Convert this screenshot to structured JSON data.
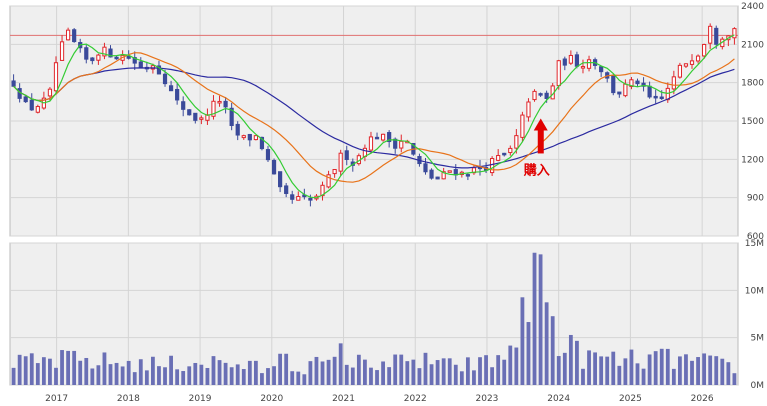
{
  "chart_data": {
    "type": "candlestick-volume",
    "x_ticks": [
      "2017",
      "2018",
      "2019",
      "2020",
      "2021",
      "2022",
      "2023",
      "2024",
      "2025",
      "2026"
    ],
    "price_axis": {
      "ticks": [
        "2400",
        "2100",
        "1800",
        "1500",
        "1200",
        "900",
        "600"
      ],
      "range": [
        600,
        2400
      ]
    },
    "volume_axis": {
      "ticks": [
        "15M",
        "10M",
        "5M",
        "0M"
      ],
      "range": [
        0,
        15
      ]
    },
    "reference_line": 2170,
    "annotation": {
      "text": "購入",
      "x": 2023.75,
      "y": 1520
    },
    "colors": {
      "up": "#e0262b",
      "down": "#3b4a9a",
      "ma_short": "#33cc33",
      "ma_mid": "#e8731a",
      "ma_long": "#2b2aa0",
      "reference": "#e07070",
      "volume": "#6a6fb5",
      "arrow": "#e00000"
    },
    "price_waypoints": [
      [
        2016.4,
        1800
      ],
      [
        2016.6,
        1590
      ],
      [
        2016.8,
        1640
      ],
      [
        2016.9,
        1700
      ],
      [
        2017.0,
        1980
      ],
      [
        2017.15,
        2190
      ],
      [
        2017.3,
        2060
      ],
      [
        2017.45,
        1950
      ],
      [
        2017.6,
        2060
      ],
      [
        2017.8,
        2020
      ],
      [
        2018.0,
        2000
      ],
      [
        2018.2,
        1910
      ],
      [
        2018.35,
        1950
      ],
      [
        2018.5,
        1840
      ],
      [
        2018.65,
        1660
      ],
      [
        2018.85,
        1560
      ],
      [
        2019.0,
        1490
      ],
      [
        2019.15,
        1610
      ],
      [
        2019.3,
        1680
      ],
      [
        2019.45,
        1420
      ],
      [
        2019.6,
        1360
      ],
      [
        2019.8,
        1380
      ],
      [
        2019.9,
        1250
      ],
      [
        2020.1,
        960
      ],
      [
        2020.25,
        880
      ],
      [
        2020.4,
        890
      ],
      [
        2020.55,
        870
      ],
      [
        2020.7,
        960
      ],
      [
        2020.85,
        1110
      ],
      [
        2021.0,
        1260
      ],
      [
        2021.15,
        1160
      ],
      [
        2021.3,
        1320
      ],
      [
        2021.45,
        1390
      ],
      [
        2021.6,
        1360
      ],
      [
        2021.75,
        1310
      ],
      [
        2021.85,
        1380
      ],
      [
        2022.0,
        1200
      ],
      [
        2022.15,
        1080
      ],
      [
        2022.3,
        1040
      ],
      [
        2022.5,
        1120
      ],
      [
        2022.65,
        1090
      ],
      [
        2022.85,
        1120
      ],
      [
        2023.0,
        1150
      ],
      [
        2023.15,
        1210
      ],
      [
        2023.3,
        1240
      ],
      [
        2023.45,
        1410
      ],
      [
        2023.55,
        1660
      ],
      [
        2023.7,
        1720
      ],
      [
        2023.85,
        1660
      ],
      [
        2024.0,
        1940
      ],
      [
        2024.15,
        1990
      ],
      [
        2024.3,
        1940
      ],
      [
        2024.45,
        1990
      ],
      [
        2024.6,
        1900
      ],
      [
        2024.8,
        1700
      ],
      [
        2024.95,
        1780
      ],
      [
        2025.1,
        1810
      ],
      [
        2025.25,
        1680
      ],
      [
        2025.4,
        1640
      ],
      [
        2025.55,
        1780
      ],
      [
        2025.7,
        1920
      ],
      [
        2025.85,
        2000
      ],
      [
        2026.0,
        2060
      ],
      [
        2026.1,
        2290
      ],
      [
        2026.2,
        2130
      ],
      [
        2026.3,
        2180
      ],
      [
        2026.45,
        2220
      ]
    ],
    "volume_waypoints": [
      [
        2016.4,
        2.2
      ],
      [
        2017.0,
        2.6
      ],
      [
        2017.5,
        2.5
      ],
      [
        2018.0,
        2.3
      ],
      [
        2018.5,
        2.1
      ],
      [
        2019.0,
        2.5
      ],
      [
        2019.5,
        2.2
      ],
      [
        2020.0,
        1.5
      ],
      [
        2020.5,
        2.1
      ],
      [
        2021.0,
        2.2
      ],
      [
        2021.5,
        2.5
      ],
      [
        2022.0,
        2.2
      ],
      [
        2022.5,
        2.0
      ],
      [
        2022.9,
        2.2
      ],
      [
        2023.1,
        2.5
      ],
      [
        2023.25,
        3.0
      ],
      [
        2023.35,
        4.4
      ],
      [
        2023.45,
        6.5
      ],
      [
        2023.55,
        7.8
      ],
      [
        2023.65,
        9.3
      ],
      [
        2023.72,
        13.8
      ],
      [
        2023.8,
        8.8
      ],
      [
        2023.9,
        6.6
      ],
      [
        2024.0,
        4.8
      ],
      [
        2024.3,
        3.1
      ],
      [
        2024.6,
        2.7
      ],
      [
        2025.0,
        2.6
      ],
      [
        2025.5,
        2.8
      ],
      [
        2026.0,
        2.4
      ],
      [
        2026.45,
        1.9
      ]
    ],
    "volume_spikes": [
      [
        2017.2,
        3.6
      ],
      [
        2020.15,
        3.3
      ],
      [
        2020.95,
        4.4
      ],
      [
        2022.15,
        3.4
      ],
      [
        2023.72,
        13.8
      ]
    ]
  }
}
